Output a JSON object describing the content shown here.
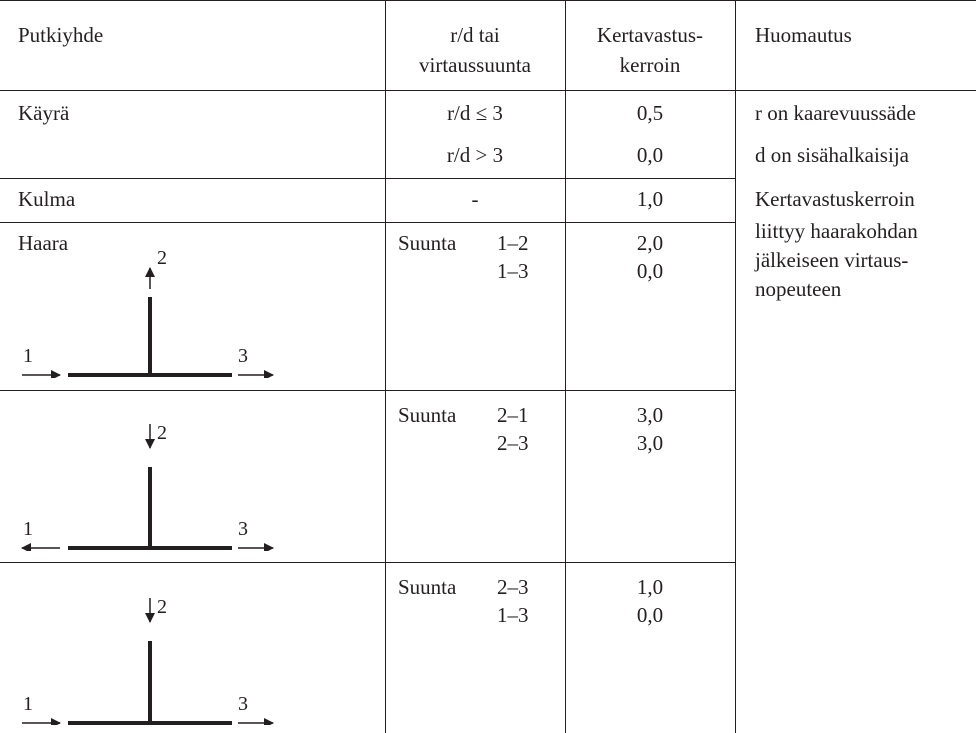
{
  "header": {
    "col1": "Putkiyhde",
    "col2_line1": "r/d tai",
    "col2_line2": "virtaussuunta",
    "col3_line1": "Kertavastus-",
    "col3_line2": "kerroin",
    "col4": "Huomautus"
  },
  "kayra": {
    "label": "Käyrä",
    "cond1": "r/d ≤  3",
    "cond2": "r/d  > 3",
    "val1": "0,5",
    "val2": "0,0",
    "note1": "r on kaarevuussäde",
    "note2": "d on sisähalkaisija"
  },
  "kulma": {
    "label": "Kulma",
    "cond": "-",
    "val": "1,0",
    "note": "Kertavastuskerroin"
  },
  "haara_note": {
    "line2": "liittyy haarakohdan",
    "line3": "jälkeiseen virtaus-",
    "line4": "nopeuteen"
  },
  "haara": {
    "label": "Haara",
    "rows": [
      {
        "suunta": "Suunta",
        "dir1": "1–2",
        "dir2": "1–3",
        "val1": "2,0",
        "val2": "0,0"
      },
      {
        "suunta": "Suunta",
        "dir1": "2–1",
        "dir2": "2–3",
        "val1": "3,0",
        "val2": "3,0"
      },
      {
        "suunta": "Suunta",
        "dir1": "2–3",
        "dir2": "1–3",
        "val1": "1,0",
        "val2": "0,0"
      }
    ]
  },
  "diagram_labels": {
    "left": "1",
    "top": "2",
    "right": "3"
  }
}
